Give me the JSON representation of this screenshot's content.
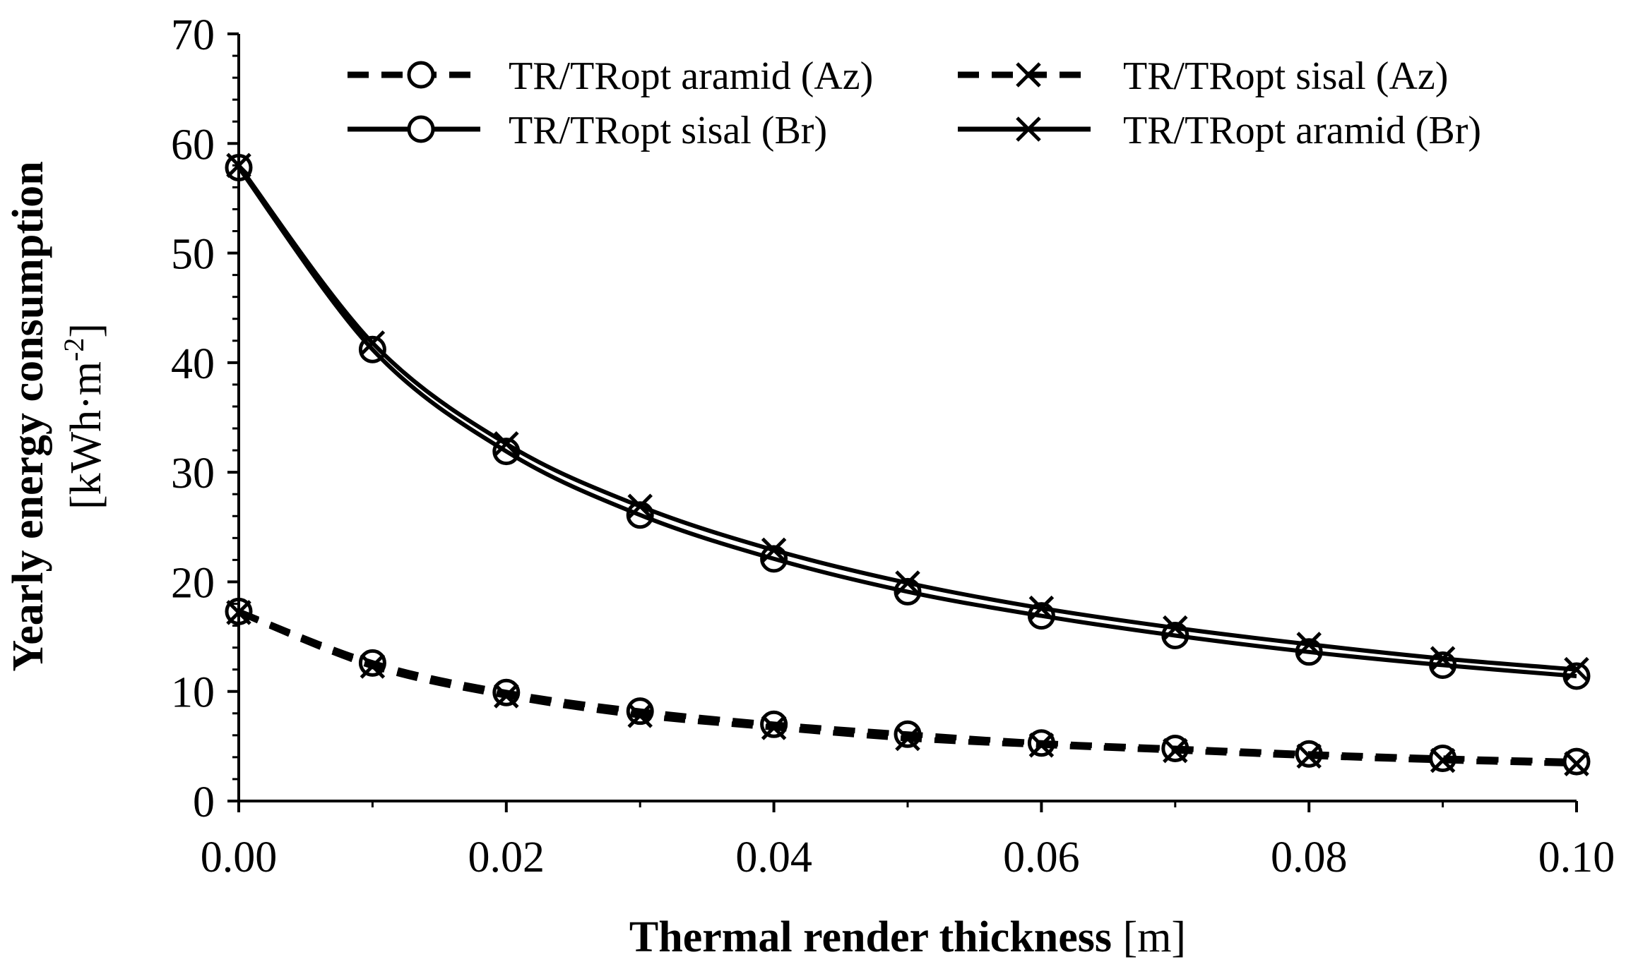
{
  "chart_data": {
    "type": "line",
    "title": "",
    "xlabel": {
      "bold": "Thermal render thickness",
      "unit": "[m]"
    },
    "ylabel": {
      "line1": "Yearly energy consumption",
      "line2_prefix": "[kWh·m",
      "line2_sup": "-2",
      "line2_suffix": "]"
    },
    "xlim": [
      0,
      0.1
    ],
    "ylim": [
      0,
      70
    ],
    "xticks": [
      "0.00",
      "0.02",
      "0.04",
      "0.06",
      "0.08",
      "0.10"
    ],
    "xtick_values": [
      0,
      0.02,
      0.04,
      0.06,
      0.08,
      0.1
    ],
    "yticks": [
      "0",
      "10",
      "20",
      "30",
      "40",
      "50",
      "60",
      "70"
    ],
    "ytick_values": [
      0,
      10,
      20,
      30,
      40,
      50,
      60,
      70
    ],
    "x": [
      0,
      0.01,
      0.02,
      0.03,
      0.04,
      0.05,
      0.06,
      0.07,
      0.08,
      0.09,
      0.1
    ],
    "legend_position": "top",
    "series": [
      {
        "name": "TR/TRopt aramid (Az)",
        "marker": "circle",
        "style": "dashed",
        "values": [
          17.3,
          12.6,
          9.9,
          8.2,
          7.0,
          6.1,
          5.3,
          4.8,
          4.3,
          3.9,
          3.6
        ]
      },
      {
        "name": "TR/TRopt sisal (Az)",
        "marker": "x",
        "style": "dashed",
        "values": [
          17.2,
          12.3,
          9.6,
          7.8,
          6.7,
          5.7,
          5.1,
          4.6,
          4.1,
          3.7,
          3.4
        ]
      },
      {
        "name": "TR/TRopt sisal (Br)",
        "marker": "circle",
        "style": "solid",
        "values": [
          57.8,
          41.2,
          31.9,
          26.1,
          22.1,
          19.1,
          16.9,
          15.1,
          13.6,
          12.4,
          11.4
        ]
      },
      {
        "name": "TR/TRopt aramid (Br)",
        "marker": "x",
        "style": "solid",
        "values": [
          58.0,
          41.8,
          32.6,
          26.9,
          22.9,
          19.9,
          17.6,
          15.8,
          14.3,
          13.0,
          12.0
        ]
      }
    ]
  }
}
